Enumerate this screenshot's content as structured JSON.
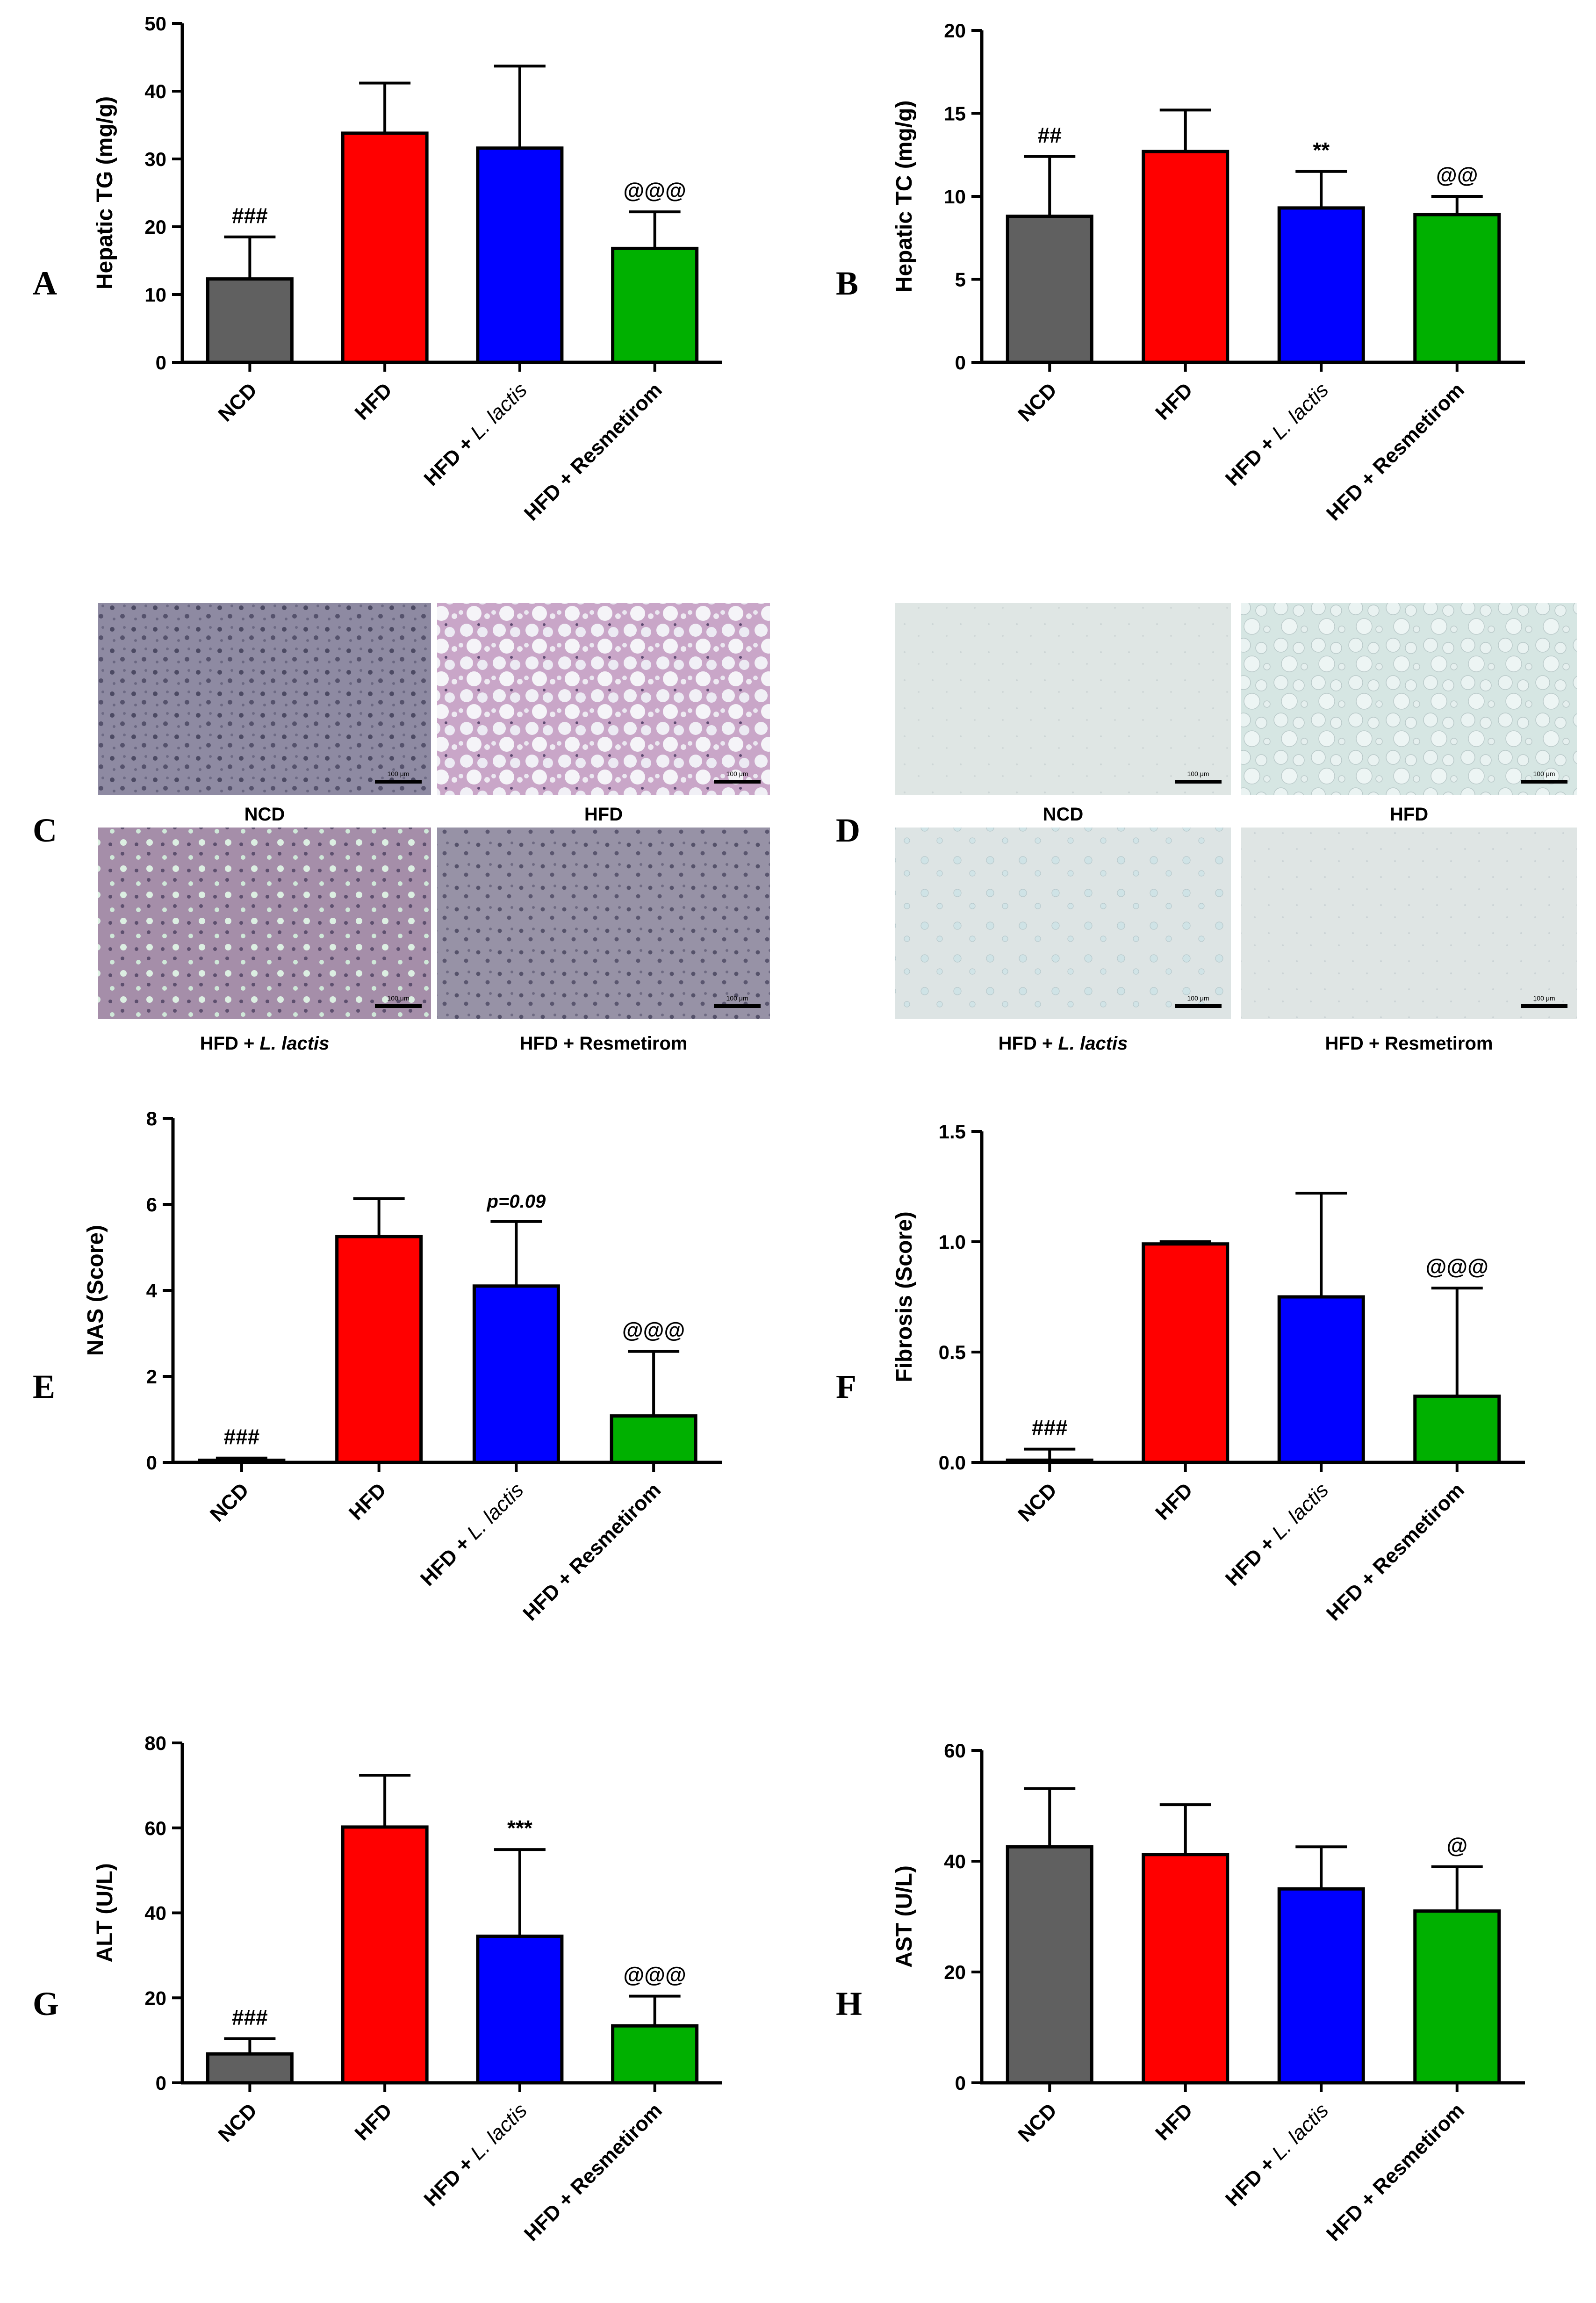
{
  "panel_labels": [
    "A",
    "B",
    "C",
    "D",
    "E",
    "F",
    "G",
    "H"
  ],
  "colors": {
    "NCD": "#606060",
    "HFD": "#ff0000",
    "LLACTIS": "#0000ff",
    "RESM": "#00b000"
  },
  "category_labels": [
    {
      "pre": "NCD",
      "ital": ""
    },
    {
      "pre": "HFD",
      "ital": ""
    },
    {
      "pre": "HFD + ",
      "ital": "L. lactis"
    },
    {
      "pre": "HFD + Resmetirom",
      "ital": ""
    }
  ],
  "histology": {
    "C": {
      "captions": [
        {
          "pre": "NCD",
          "ital": ""
        },
        {
          "pre": "HFD",
          "ital": ""
        },
        {
          "pre": "HFD + ",
          "ital": "L. lactis"
        },
        {
          "pre": "HFD + Resmetirom",
          "ital": ""
        }
      ],
      "scale_bar": "100 μm"
    },
    "D": {
      "captions": [
        {
          "pre": "NCD",
          "ital": ""
        },
        {
          "pre": "HFD",
          "ital": ""
        },
        {
          "pre": "HFD + ",
          "ital": "L. lactis"
        },
        {
          "pre": "HFD + Resmetirom",
          "ital": ""
        }
      ],
      "scale_bar": "100 μm"
    }
  },
  "chart_data": [
    {
      "panel": "A",
      "type": "bar",
      "ylabel": "Hepatic TG (mg/g)",
      "ylim": [
        0,
        50
      ],
      "ticks": [
        0,
        10,
        20,
        30,
        40,
        50
      ],
      "categories": [
        "NCD",
        "HFD",
        "HFD + L. lactis",
        "HFD + Resmetirom"
      ],
      "values": [
        12.3,
        33.8,
        31.6,
        16.8
      ],
      "errors": [
        6.2,
        7.4,
        12.1,
        5.4
      ],
      "annotations": [
        "###",
        "",
        "",
        "@@@"
      ]
    },
    {
      "panel": "B",
      "type": "bar",
      "ylabel": "Hepatic TC  (mg/g)",
      "ylim": [
        0,
        20
      ],
      "ticks": [
        0,
        5,
        10,
        15,
        20
      ],
      "categories": [
        "NCD",
        "HFD",
        "HFD + L. lactis",
        "HFD + Resmetirom"
      ],
      "values": [
        8.8,
        12.7,
        9.3,
        8.9
      ],
      "errors": [
        3.6,
        2.5,
        2.2,
        1.1
      ],
      "annotations": [
        "##",
        "",
        "**",
        "@@"
      ]
    },
    {
      "panel": "E",
      "type": "bar",
      "ylabel": "NAS (Score)",
      "ylim": [
        0,
        8
      ],
      "ticks": [
        0,
        2,
        4,
        6,
        8
      ],
      "categories": [
        "NCD",
        "HFD",
        "HFD + L. lactis",
        "HFD + Resmetirom"
      ],
      "values": [
        0.05,
        5.25,
        4.1,
        1.08
      ],
      "errors": [
        0.05,
        0.88,
        1.5,
        1.5
      ],
      "annotations": [
        "###",
        "",
        "p=0.09",
        "@@@"
      ]
    },
    {
      "panel": "F",
      "type": "bar",
      "ylabel": "Fibrosis (Score)",
      "ylim": [
        0,
        1.5
      ],
      "ticks": [
        "0.0",
        "0.5",
        "1.0",
        "1.5"
      ],
      "categories": [
        "NCD",
        "HFD",
        "HFD + L. lactis",
        "HFD + Resmetirom"
      ],
      "values": [
        0.01,
        0.99,
        0.75,
        0.3
      ],
      "errors": [
        0.05,
        0.01,
        0.47,
        0.49
      ],
      "annotations": [
        "###",
        "",
        "",
        "@@@"
      ]
    },
    {
      "panel": "G",
      "type": "bar",
      "ylabel": "ALT (U/L)",
      "ylim": [
        0,
        80
      ],
      "ticks": [
        0,
        20,
        40,
        60,
        80
      ],
      "categories": [
        "NCD",
        "HFD",
        "HFD + L. lactis",
        "HFD + Resmetirom"
      ],
      "values": [
        6.8,
        60.2,
        34.5,
        13.4
      ],
      "errors": [
        3.6,
        12.2,
        20.4,
        7.0
      ],
      "annotations": [
        "###",
        "",
        "***",
        "@@@"
      ]
    },
    {
      "panel": "H",
      "type": "bar",
      "ylabel": "AST (U/L)",
      "ylim": [
        0,
        60
      ],
      "ticks": [
        0,
        20,
        40,
        60
      ],
      "categories": [
        "NCD",
        "HFD",
        "HFD + L. lactis",
        "HFD + Resmetirom"
      ],
      "values": [
        42.6,
        41.2,
        35.0,
        31.0
      ],
      "errors": [
        10.5,
        9.0,
        7.6,
        8.0
      ],
      "annotations": [
        "",
        "",
        "",
        "@"
      ]
    }
  ]
}
